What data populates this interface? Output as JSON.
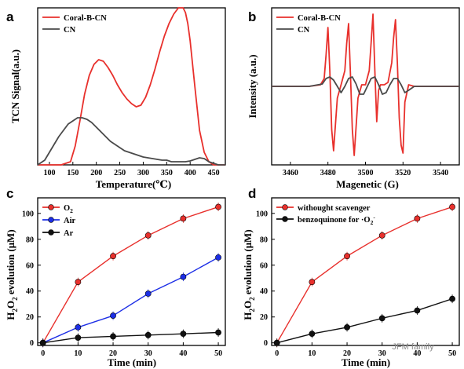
{
  "colors": {
    "red": "#e8302c",
    "blue": "#1c2ee6",
    "black": "#111111",
    "gray": "#4a4a4a"
  },
  "watermark": "JFM family",
  "chart_data": [
    {
      "panel": "a",
      "type": "line",
      "xlabel": "Temperature(℃)",
      "ylabel": "TCN Signal(a.u.)",
      "xlim": [
        75,
        475
      ],
      "xticks": [
        100,
        150,
        200,
        250,
        300,
        350,
        400,
        450
      ],
      "ylim": [
        0,
        1
      ],
      "yticks_shown": false,
      "legend_position": "top-left",
      "series": [
        {
          "name": "Coral-B-CN",
          "color": "red",
          "x": [
            75,
            100,
            125,
            145,
            155,
            165,
            175,
            185,
            195,
            205,
            215,
            225,
            235,
            245,
            255,
            265,
            275,
            285,
            295,
            305,
            315,
            325,
            335,
            345,
            355,
            365,
            375,
            385,
            390,
            395,
            400,
            410,
            420,
            430,
            440,
            450,
            460,
            475
          ],
          "y": [
            0,
            0,
            0,
            0.02,
            0.12,
            0.28,
            0.45,
            0.57,
            0.64,
            0.67,
            0.66,
            0.62,
            0.57,
            0.51,
            0.46,
            0.42,
            0.39,
            0.37,
            0.38,
            0.43,
            0.51,
            0.61,
            0.72,
            0.82,
            0.9,
            0.96,
            1.0,
            1.0,
            0.97,
            0.9,
            0.79,
            0.5,
            0.22,
            0.08,
            0.02,
            0,
            0,
            0
          ]
        },
        {
          "name": "CN",
          "color": "gray",
          "x": [
            75,
            90,
            100,
            110,
            120,
            130,
            140,
            150,
            160,
            170,
            180,
            190,
            200,
            210,
            220,
            230,
            240,
            250,
            260,
            270,
            280,
            290,
            300,
            310,
            320,
            330,
            340,
            350,
            360,
            370,
            380,
            390,
            400,
            410,
            420,
            430,
            440,
            450,
            460,
            475
          ],
          "y": [
            0,
            0.03,
            0.08,
            0.13,
            0.18,
            0.22,
            0.26,
            0.28,
            0.3,
            0.3,
            0.29,
            0.27,
            0.24,
            0.21,
            0.18,
            0.15,
            0.13,
            0.11,
            0.09,
            0.08,
            0.07,
            0.06,
            0.05,
            0.045,
            0.04,
            0.035,
            0.03,
            0.03,
            0.02,
            0.02,
            0.02,
            0.02,
            0.025,
            0.035,
            0.045,
            0.04,
            0.02,
            0.01,
            0,
            0
          ]
        }
      ]
    },
    {
      "panel": "b",
      "type": "line",
      "xlabel": "Magenetic (G)",
      "ylabel": "Intensity (a.u.)",
      "xlim": [
        3450,
        3550
      ],
      "xticks": [
        3460,
        3480,
        3500,
        3520,
        3540
      ],
      "ylim": [
        -1,
        1
      ],
      "yticks_shown": false,
      "legend_position": "top-left",
      "series": [
        {
          "name": "Coral-B-CN",
          "color": "red",
          "x": [
            3450,
            3470,
            3476,
            3478,
            3479,
            3480,
            3481,
            3482,
            3483,
            3485,
            3487,
            3489,
            3490,
            3491,
            3492,
            3493,
            3494,
            3496,
            3498,
            3500,
            3502,
            3503,
            3504,
            3505,
            3506,
            3507,
            3508,
            3510,
            3512,
            3514,
            3515,
            3516,
            3517,
            3518,
            3519,
            3520,
            3521,
            3523,
            3526,
            3550
          ],
          "y": [
            0,
            0,
            0.02,
            0.1,
            0.4,
            0.75,
            0.2,
            -0.55,
            -0.82,
            -0.15,
            0.02,
            0.2,
            0.55,
            0.8,
            0.15,
            -0.55,
            -0.88,
            -0.15,
            0.02,
            0.02,
            0.2,
            0.55,
            0.92,
            0.2,
            -0.45,
            -0.05,
            0.02,
            0.02,
            0.05,
            0.3,
            0.62,
            0.85,
            0.3,
            -0.4,
            -0.75,
            -0.85,
            -0.2,
            0.02,
            0,
            0
          ]
        },
        {
          "name": "CN",
          "color": "gray",
          "x": [
            3450,
            3470,
            3477,
            3479,
            3481,
            3483,
            3485,
            3487,
            3489,
            3491,
            3493,
            3495,
            3497,
            3499,
            3501,
            3503,
            3505,
            3507,
            3509,
            3511,
            3513,
            3515,
            3517,
            3519,
            3521,
            3523,
            3526,
            3530,
            3550
          ],
          "y": [
            0,
            0,
            0.03,
            0.1,
            0.12,
            0.08,
            0,
            -0.08,
            0,
            0.1,
            0.12,
            0.03,
            -0.1,
            -0.1,
            0,
            0.1,
            0.12,
            0.02,
            -0.1,
            -0.08,
            0.02,
            0.1,
            0.1,
            0.02,
            -0.08,
            -0.05,
            0,
            0,
            0
          ]
        }
      ]
    },
    {
      "panel": "c",
      "type": "line",
      "xlabel": "Time (min)",
      "ylabel": "H2O2 evolution (μM)",
      "xlim": [
        -1.5,
        52
      ],
      "xticks": [
        0,
        10,
        20,
        30,
        40,
        50
      ],
      "ylim": [
        -2,
        112
      ],
      "yticks": [
        0,
        20,
        40,
        60,
        80,
        100
      ],
      "legend_position": "top-left",
      "series": [
        {
          "name": "O2",
          "name_main": "O",
          "name_sub": "2",
          "color": "red",
          "x": [
            0,
            10,
            20,
            30,
            40,
            50
          ],
          "y": [
            0,
            47,
            67,
            83,
            96,
            105
          ]
        },
        {
          "name": "Air",
          "color": "blue",
          "x": [
            0,
            10,
            20,
            30,
            40,
            50
          ],
          "y": [
            0,
            12,
            21,
            38,
            51,
            66
          ]
        },
        {
          "name": "Ar",
          "color": "black",
          "x": [
            0,
            10,
            20,
            30,
            40,
            50
          ],
          "y": [
            0,
            4,
            5,
            6,
            7,
            8
          ]
        }
      ]
    },
    {
      "panel": "d",
      "type": "line",
      "xlabel": "Time (min)",
      "ylabel": "H2O2 evolution (μM)",
      "xlim": [
        -1.5,
        52
      ],
      "xticks": [
        0,
        10,
        20,
        30,
        40,
        50
      ],
      "ylim": [
        -2,
        112
      ],
      "yticks": [
        0,
        20,
        40,
        60,
        80,
        100
      ],
      "legend_position": "top-left",
      "series": [
        {
          "name": "withought scavenger",
          "color": "red",
          "x": [
            0,
            10,
            20,
            30,
            40,
            50
          ],
          "y": [
            0,
            47,
            67,
            83,
            96,
            105
          ]
        },
        {
          "name": "benzoquinone for ·O2-",
          "name_main": "benzoquinone for ·O",
          "name_sub": "2",
          "name_sup": "-",
          "color": "black",
          "x": [
            0,
            10,
            20,
            30,
            40,
            50
          ],
          "y": [
            0,
            7,
            12,
            19,
            25,
            34
          ]
        }
      ]
    }
  ]
}
